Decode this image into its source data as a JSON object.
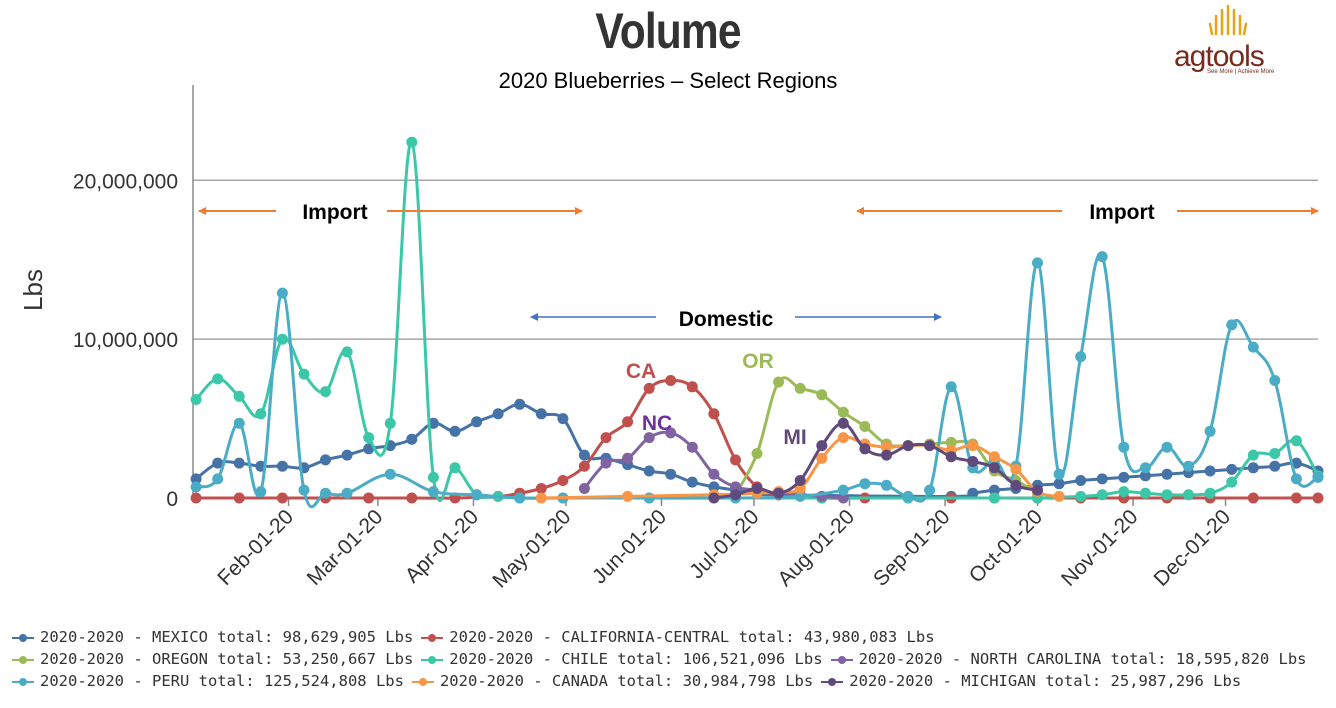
{
  "header": {
    "title": "Volume",
    "subtitle": "2020 Blueberries – Select Regions",
    "logo_text": "agtools",
    "logo_tagline": "See More | Achieve More"
  },
  "annotations": {
    "import_left": "Import",
    "import_right": "Import",
    "domestic": "Domestic",
    "ca": "CA",
    "nc": "NC",
    "or": "OR",
    "mi": "MI"
  },
  "colors": {
    "import_arrow": "#ed7d31",
    "domestic_arrow": "#4472c4",
    "ca": "#c0504d",
    "nc": "#7030a0",
    "or": "#9bbb59",
    "mi": "#604a7b"
  },
  "legend": [
    [
      {
        "series": 0
      },
      {
        "series": 1
      }
    ],
    [
      {
        "series": 2
      },
      {
        "series": 3
      },
      {
        "series": 4
      }
    ],
    [
      {
        "series": 5
      },
      {
        "series": 6
      },
      {
        "series": 7
      }
    ]
  ],
  "chart_data": {
    "type": "line",
    "ylabel": "Lbs",
    "xlabel": "",
    "ylim": [
      0,
      26000000
    ],
    "xlim": [
      "2020-01-01",
      "2020-12-31"
    ],
    "yticks": [
      0,
      10000000,
      20000000
    ],
    "ytick_labels": [
      "0",
      "10,000,000",
      "20,000,000"
    ],
    "xticks": [
      "2020-02-01",
      "2020-03-01",
      "2020-04-01",
      "2020-05-01",
      "2020-06-01",
      "2020-07-01",
      "2020-08-01",
      "2020-09-01",
      "2020-10-01",
      "2020-11-01",
      "2020-12-01"
    ],
    "xtick_labels": [
      "Feb-01-20",
      "Mar-01-20",
      "Apr-01-20",
      "May-01-20",
      "Jun-01-20",
      "Jul-01-20",
      "Aug-01-20",
      "Sep-01-20",
      "Oct-01-20",
      "Nov-01-20",
      "Dec-01-20"
    ],
    "grid": true,
    "legend_position": "bottom",
    "series": [
      {
        "name": "2020-2020 - MEXICO total: 98,629,905 Lbs",
        "color": "#4572a7",
        "x": [
          "2020-01-02",
          "2020-01-09",
          "2020-01-16",
          "2020-01-23",
          "2020-01-30",
          "2020-02-06",
          "2020-02-13",
          "2020-02-20",
          "2020-02-27",
          "2020-03-05",
          "2020-03-12",
          "2020-03-19",
          "2020-03-26",
          "2020-04-02",
          "2020-04-09",
          "2020-04-16",
          "2020-04-23",
          "2020-04-30",
          "2020-05-07",
          "2020-05-14",
          "2020-05-21",
          "2020-05-28",
          "2020-06-04",
          "2020-06-11",
          "2020-06-18",
          "2020-06-25",
          "2020-07-02",
          "2020-07-09",
          "2020-09-03",
          "2020-09-10",
          "2020-09-17",
          "2020-09-24",
          "2020-10-01",
          "2020-10-08",
          "2020-10-15",
          "2020-10-22",
          "2020-10-29",
          "2020-11-05",
          "2020-11-12",
          "2020-11-19",
          "2020-11-26",
          "2020-12-03",
          "2020-12-10",
          "2020-12-17",
          "2020-12-24",
          "2020-12-31"
        ],
        "y": [
          1200000,
          2200000,
          2200000,
          2000000,
          2000000,
          1900000,
          2400000,
          2700000,
          3100000,
          3300000,
          3700000,
          4700000,
          4200000,
          4800000,
          5300000,
          5900000,
          5300000,
          5000000,
          2700000,
          2500000,
          2100000,
          1700000,
          1500000,
          1000000,
          700000,
          500000,
          300000,
          200000,
          100000,
          300000,
          500000,
          600000,
          800000,
          900000,
          1100000,
          1200000,
          1300000,
          1400000,
          1500000,
          1600000,
          1700000,
          1800000,
          1900000,
          2000000,
          2200000,
          1700000
        ]
      },
      {
        "name": "2020-2020 - CALIFORNIA-CENTRAL total: 43,980,083 Lbs",
        "color": "#c0504d",
        "x": [
          "2020-01-02",
          "2020-01-16",
          "2020-01-30",
          "2020-02-13",
          "2020-02-27",
          "2020-03-12",
          "2020-03-26",
          "2020-04-09",
          "2020-04-16",
          "2020-04-23",
          "2020-04-30",
          "2020-05-07",
          "2020-05-14",
          "2020-05-21",
          "2020-05-28",
          "2020-06-04",
          "2020-06-11",
          "2020-06-18",
          "2020-06-25",
          "2020-07-02",
          "2020-07-09",
          "2020-07-23",
          "2020-08-06",
          "2020-08-20",
          "2020-09-03",
          "2020-09-17",
          "2020-10-01",
          "2020-10-15",
          "2020-10-29",
          "2020-11-12",
          "2020-11-26",
          "2020-12-10",
          "2020-12-24",
          "2020-12-31"
        ],
        "y": [
          0,
          0,
          0,
          0,
          0,
          0,
          0,
          100000,
          300000,
          600000,
          1100000,
          2000000,
          3800000,
          4800000,
          6900000,
          7400000,
          7000000,
          5300000,
          2400000,
          700000,
          200000,
          0,
          0,
          0,
          0,
          0,
          0,
          0,
          0,
          0,
          0,
          0,
          0,
          0
        ]
      },
      {
        "name": "2020-2020 - OREGON total: 53,250,667 Lbs",
        "color": "#9bbb59",
        "x": [
          "2020-06-25",
          "2020-07-02",
          "2020-07-09",
          "2020-07-16",
          "2020-07-23",
          "2020-07-30",
          "2020-08-06",
          "2020-08-13",
          "2020-08-20",
          "2020-08-27",
          "2020-09-03",
          "2020-09-10",
          "2020-09-17",
          "2020-09-24",
          "2020-10-01"
        ],
        "y": [
          200000,
          2800000,
          7300000,
          6900000,
          6500000,
          5400000,
          4500000,
          3400000,
          3300000,
          3400000,
          3500000,
          3400000,
          1700000,
          1100000,
          300000
        ]
      },
      {
        "name": "2020-2020 - CHILE total: 106,521,096 Lbs",
        "color": "#3cc8a8",
        "x": [
          "2020-01-02",
          "2020-01-09",
          "2020-01-16",
          "2020-01-23",
          "2020-01-30",
          "2020-02-06",
          "2020-02-13",
          "2020-02-20",
          "2020-02-27",
          "2020-03-05",
          "2020-03-12",
          "2020-03-19",
          "2020-03-26",
          "2020-04-02",
          "2020-04-09",
          "2020-04-16",
          "2020-04-30",
          "2020-05-28",
          "2020-06-25",
          "2020-07-23",
          "2020-08-20",
          "2020-09-17",
          "2020-10-01",
          "2020-10-15",
          "2020-10-22",
          "2020-10-29",
          "2020-11-05",
          "2020-11-12",
          "2020-11-19",
          "2020-11-26",
          "2020-12-03",
          "2020-12-10",
          "2020-12-17",
          "2020-12-24",
          "2020-12-31"
        ],
        "y": [
          6200000,
          7500000,
          6400000,
          5300000,
          10000000,
          7800000,
          6700000,
          9200000,
          3800000,
          4700000,
          22400000,
          1300000,
          1900000,
          200000,
          100000,
          0,
          0,
          0,
          0,
          0,
          0,
          0,
          0,
          100000,
          200000,
          400000,
          300000,
          200000,
          200000,
          300000,
          1000000,
          2700000,
          2800000,
          3600000,
          1400000
        ]
      },
      {
        "name": "2020-2020 - NORTH CAROLINA total: 18,595,820 Lbs",
        "color": "#8064a2",
        "x": [
          "2020-05-07",
          "2020-05-14",
          "2020-05-21",
          "2020-05-28",
          "2020-06-04",
          "2020-06-11",
          "2020-06-18",
          "2020-06-25",
          "2020-07-02",
          "2020-07-09",
          "2020-07-16",
          "2020-07-23",
          "2020-07-30"
        ],
        "y": [
          600000,
          2200000,
          2500000,
          3800000,
          4100000,
          3200000,
          1500000,
          700000,
          500000,
          300000,
          200000,
          100000,
          0
        ]
      },
      {
        "name": "2020-2020 - PERU total: 125,524,808 Lbs",
        "color": "#4bacc6",
        "x": [
          "2020-01-02",
          "2020-01-09",
          "2020-01-16",
          "2020-01-23",
          "2020-01-30",
          "2020-02-06",
          "2020-02-13",
          "2020-02-20",
          "2020-03-05",
          "2020-03-19",
          "2020-04-02",
          "2020-04-16",
          "2020-04-30",
          "2020-05-28",
          "2020-06-25",
          "2020-07-16",
          "2020-07-30",
          "2020-08-06",
          "2020-08-13",
          "2020-08-20",
          "2020-08-27",
          "2020-09-03",
          "2020-09-10",
          "2020-09-17",
          "2020-09-24",
          "2020-10-01",
          "2020-10-08",
          "2020-10-15",
          "2020-10-22",
          "2020-10-29",
          "2020-11-05",
          "2020-11-12",
          "2020-11-19",
          "2020-11-26",
          "2020-12-03",
          "2020-12-10",
          "2020-12-17",
          "2020-12-24",
          "2020-12-31"
        ],
        "y": [
          700000,
          1200000,
          4700000,
          400000,
          12900000,
          500000,
          300000,
          300000,
          1500000,
          400000,
          200000,
          0,
          0,
          0,
          0,
          100000,
          500000,
          900000,
          800000,
          100000,
          500000,
          7000000,
          1900000,
          2400000,
          2000000,
          14800000,
          1500000,
          8900000,
          15200000,
          3200000,
          1900000,
          3200000,
          2000000,
          4200000,
          10900000,
          9500000,
          7400000,
          1200000,
          1300000
        ]
      },
      {
        "name": "2020-2020 - CANADA total: 30,984,798 Lbs",
        "color": "#f79646",
        "x": [
          "2020-04-23",
          "2020-05-21",
          "2020-06-18",
          "2020-07-02",
          "2020-07-09",
          "2020-07-16",
          "2020-07-23",
          "2020-07-30",
          "2020-08-06",
          "2020-08-13",
          "2020-08-20",
          "2020-08-27",
          "2020-09-03",
          "2020-09-10",
          "2020-09-17",
          "2020-09-24",
          "2020-10-01",
          "2020-10-08"
        ],
        "y": [
          0,
          100000,
          200000,
          300000,
          400000,
          600000,
          2500000,
          3800000,
          3400000,
          3200000,
          3300000,
          3300000,
          3000000,
          3300000,
          2600000,
          1800000,
          400000,
          100000
        ]
      },
      {
        "name": "2020-2020 - MICHIGAN total: 25,987,296 Lbs",
        "color": "#604a7b",
        "x": [
          "2020-06-18",
          "2020-06-25",
          "2020-07-02",
          "2020-07-09",
          "2020-07-16",
          "2020-07-23",
          "2020-07-30",
          "2020-08-06",
          "2020-08-13",
          "2020-08-20",
          "2020-08-27",
          "2020-09-03",
          "2020-09-10",
          "2020-09-17",
          "2020-09-24",
          "2020-10-01"
        ],
        "y": [
          0,
          200000,
          600000,
          300000,
          1100000,
          3300000,
          4700000,
          3100000,
          2700000,
          3300000,
          3300000,
          2600000,
          2300000,
          1900000,
          800000,
          500000
        ]
      }
    ]
  }
}
